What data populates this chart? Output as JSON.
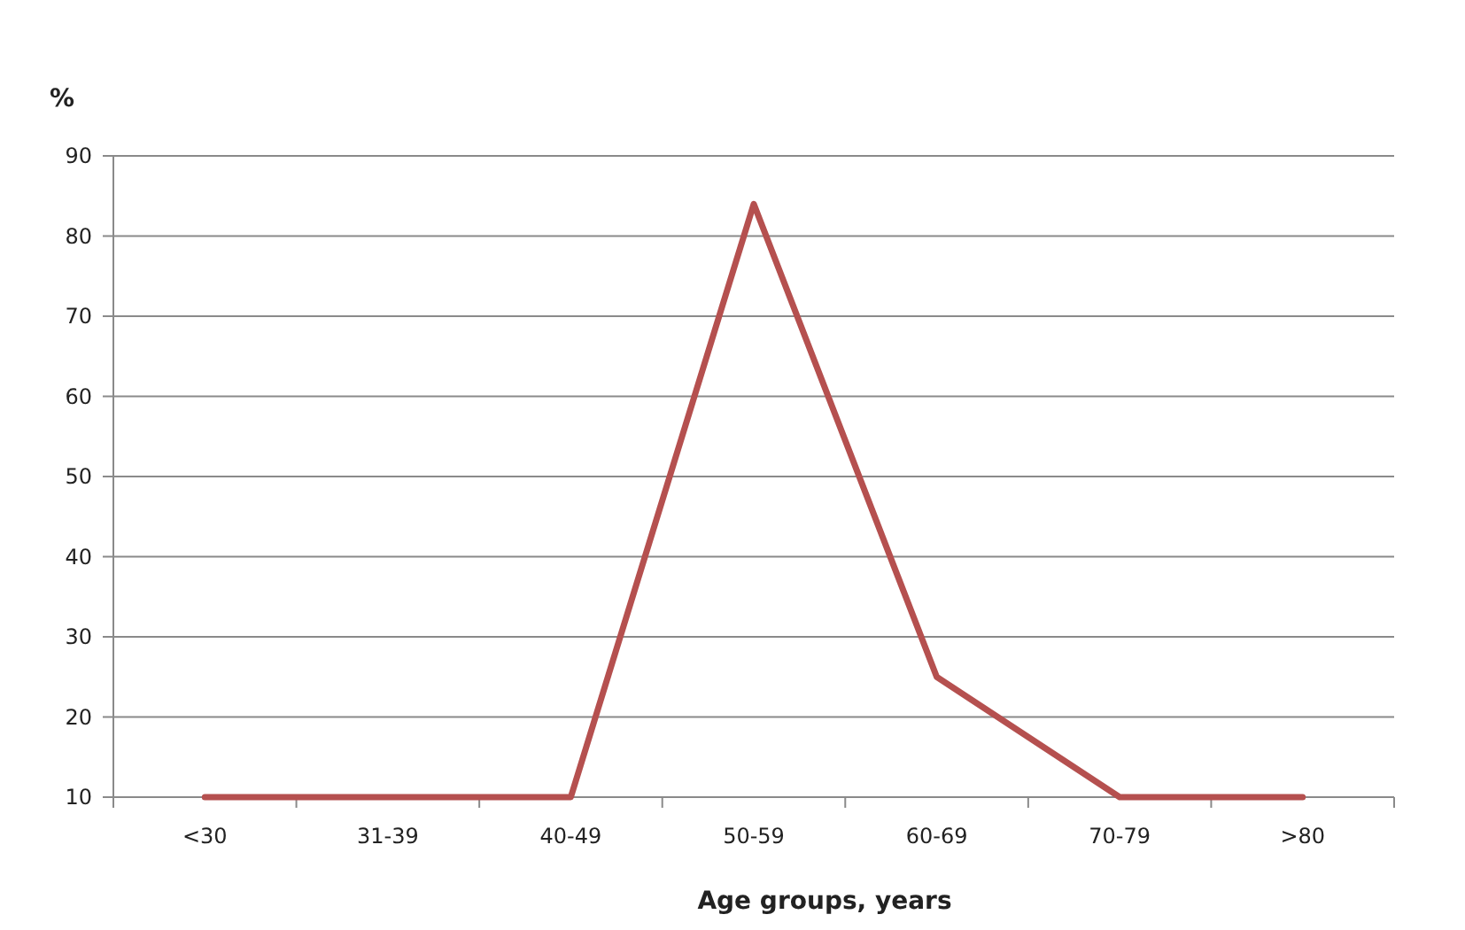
{
  "chart_data": {
    "type": "line",
    "xlabel": "Age groups, years",
    "ylabel": "%",
    "categories": [
      "<30",
      "31-39",
      "40-49",
      "50-59",
      "60-69",
      "70-79",
      ">80"
    ],
    "series": [
      {
        "color": "#b5504f",
        "values": [
          10,
          10,
          10,
          84,
          25,
          10,
          10
        ]
      }
    ],
    "ylim": [
      10,
      90
    ],
    "yticks": [
      10,
      20,
      30,
      40,
      50,
      60,
      70,
      80,
      90
    ],
    "grid": "y",
    "marker": "none",
    "line_style": "solid"
  }
}
